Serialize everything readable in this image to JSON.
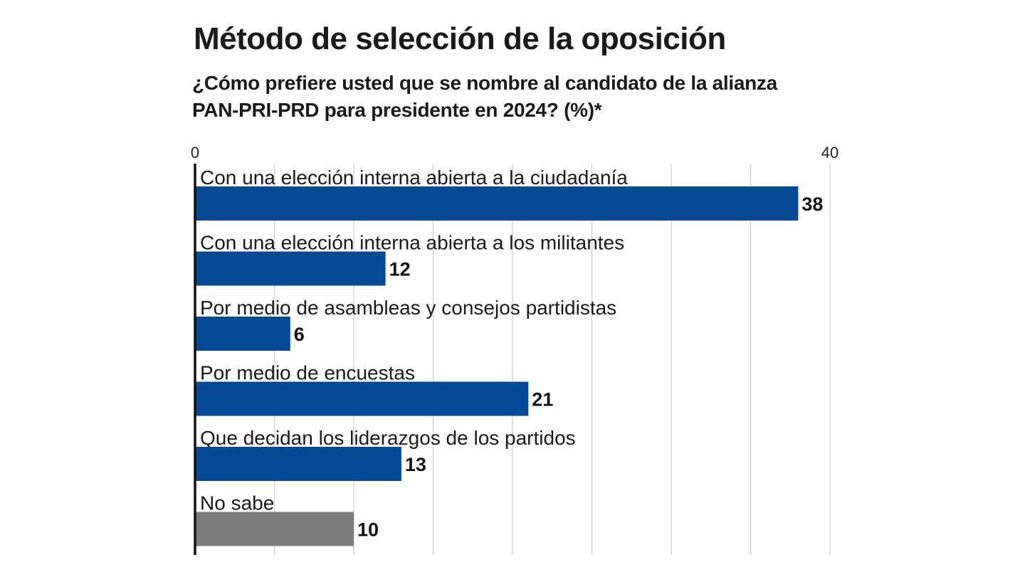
{
  "chart_data": {
    "type": "bar",
    "orientation": "horizontal",
    "title": "Método de selección de la oposición",
    "subtitle": "¿Cómo prefiere usted que se nombre al candidato de la alianza PAN-PRI-PRD para presidente en 2024?  (%)*",
    "categories": [
      "Con una elección interna abierta a la ciudadanía",
      "Con una elección interna abierta a los militantes",
      "Por medio de asambleas y consejos partidistas",
      "Por medio de encuestas",
      "Que decidan los liderazgos de los partidos",
      "No sabe"
    ],
    "values": [
      38,
      12,
      6,
      21,
      13,
      10
    ],
    "value_labels": [
      "38",
      "12",
      "6",
      "21",
      "13",
      "10"
    ],
    "xlim": [
      0,
      40
    ],
    "x_tick_labels": [
      "0",
      "40"
    ],
    "gridlines": [
      0,
      5,
      10,
      15,
      20,
      25,
      30,
      35,
      40
    ],
    "grid": true,
    "colors": {
      "bar": "#044a94",
      "bar_no_sabe": "#7d7c7c",
      "gridline": "#d6d6d6",
      "axis": "#111111"
    }
  }
}
